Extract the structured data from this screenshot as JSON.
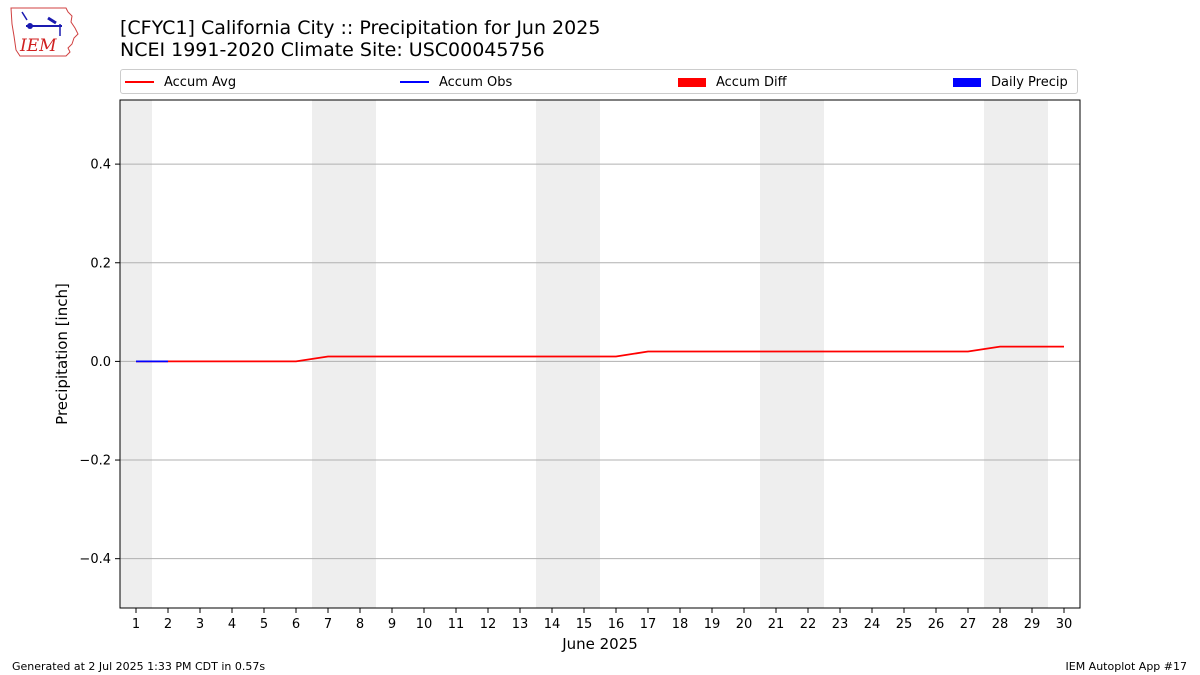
{
  "header": {
    "title_line1": "[CFYC1] California City :: Precipitation for Jun 2025",
    "title_line2": "NCEI 1991-2020 Climate Site: USC00045756"
  },
  "logo": {
    "text": "IEM",
    "icon": "iem-logo-icon"
  },
  "legend": {
    "items": [
      {
        "label": "Accum Avg",
        "kind": "line",
        "color": "#ff0000"
      },
      {
        "label": "Accum Obs",
        "kind": "line",
        "color": "#0000ff"
      },
      {
        "label": "Accum Diff",
        "kind": "patch",
        "color": "#ff0000"
      },
      {
        "label": "Daily Precip",
        "kind": "patch",
        "color": "#0000ff"
      }
    ]
  },
  "footer": {
    "left": "Generated at 2 Jul 2025 1:33 PM CDT in 0.57s",
    "right": "IEM Autoplot App #17"
  },
  "chart_data": {
    "type": "line",
    "xlabel": "June 2025",
    "ylabel": "Precipitation [inch]",
    "xlim": [
      0.5,
      30.5
    ],
    "ylim": [
      -0.5,
      0.53
    ],
    "x_ticks": [
      1,
      2,
      3,
      4,
      5,
      6,
      7,
      8,
      9,
      10,
      11,
      12,
      13,
      14,
      15,
      16,
      17,
      18,
      19,
      20,
      21,
      22,
      23,
      24,
      25,
      26,
      27,
      28,
      29,
      30
    ],
    "y_ticks": [
      {
        "value": -0.4,
        "label": "−0.4"
      },
      {
        "value": -0.2,
        "label": "−0.2"
      },
      {
        "value": 0.0,
        "label": "0.0"
      },
      {
        "value": 0.2,
        "label": "0.2"
      },
      {
        "value": 0.4,
        "label": "0.4"
      }
    ],
    "grid": "y",
    "legend_position": "top",
    "weekend_bands": [
      [
        0.5,
        1.5
      ],
      [
        6.5,
        8.5
      ],
      [
        13.5,
        15.5
      ],
      [
        20.5,
        22.5
      ],
      [
        27.5,
        29.5
      ]
    ],
    "band_color": "#eeeeee",
    "series": [
      {
        "name": "Accum Avg",
        "color": "#ff0000",
        "x": [
          1,
          2,
          3,
          4,
          5,
          6,
          7,
          8,
          9,
          10,
          11,
          12,
          13,
          14,
          15,
          16,
          17,
          18,
          19,
          20,
          21,
          22,
          23,
          24,
          25,
          26,
          27,
          28,
          29,
          30
        ],
        "y": [
          0,
          0,
          0,
          0,
          0,
          0,
          0.01,
          0.01,
          0.01,
          0.01,
          0.01,
          0.01,
          0.01,
          0.01,
          0.01,
          0.01,
          0.02,
          0.02,
          0.02,
          0.02,
          0.02,
          0.02,
          0.02,
          0.02,
          0.02,
          0.02,
          0.02,
          0.03,
          0.03,
          0.03
        ]
      },
      {
        "name": "Accum Obs",
        "color": "#0000ff",
        "x": [
          1,
          2
        ],
        "y": [
          0,
          0
        ]
      }
    ]
  }
}
